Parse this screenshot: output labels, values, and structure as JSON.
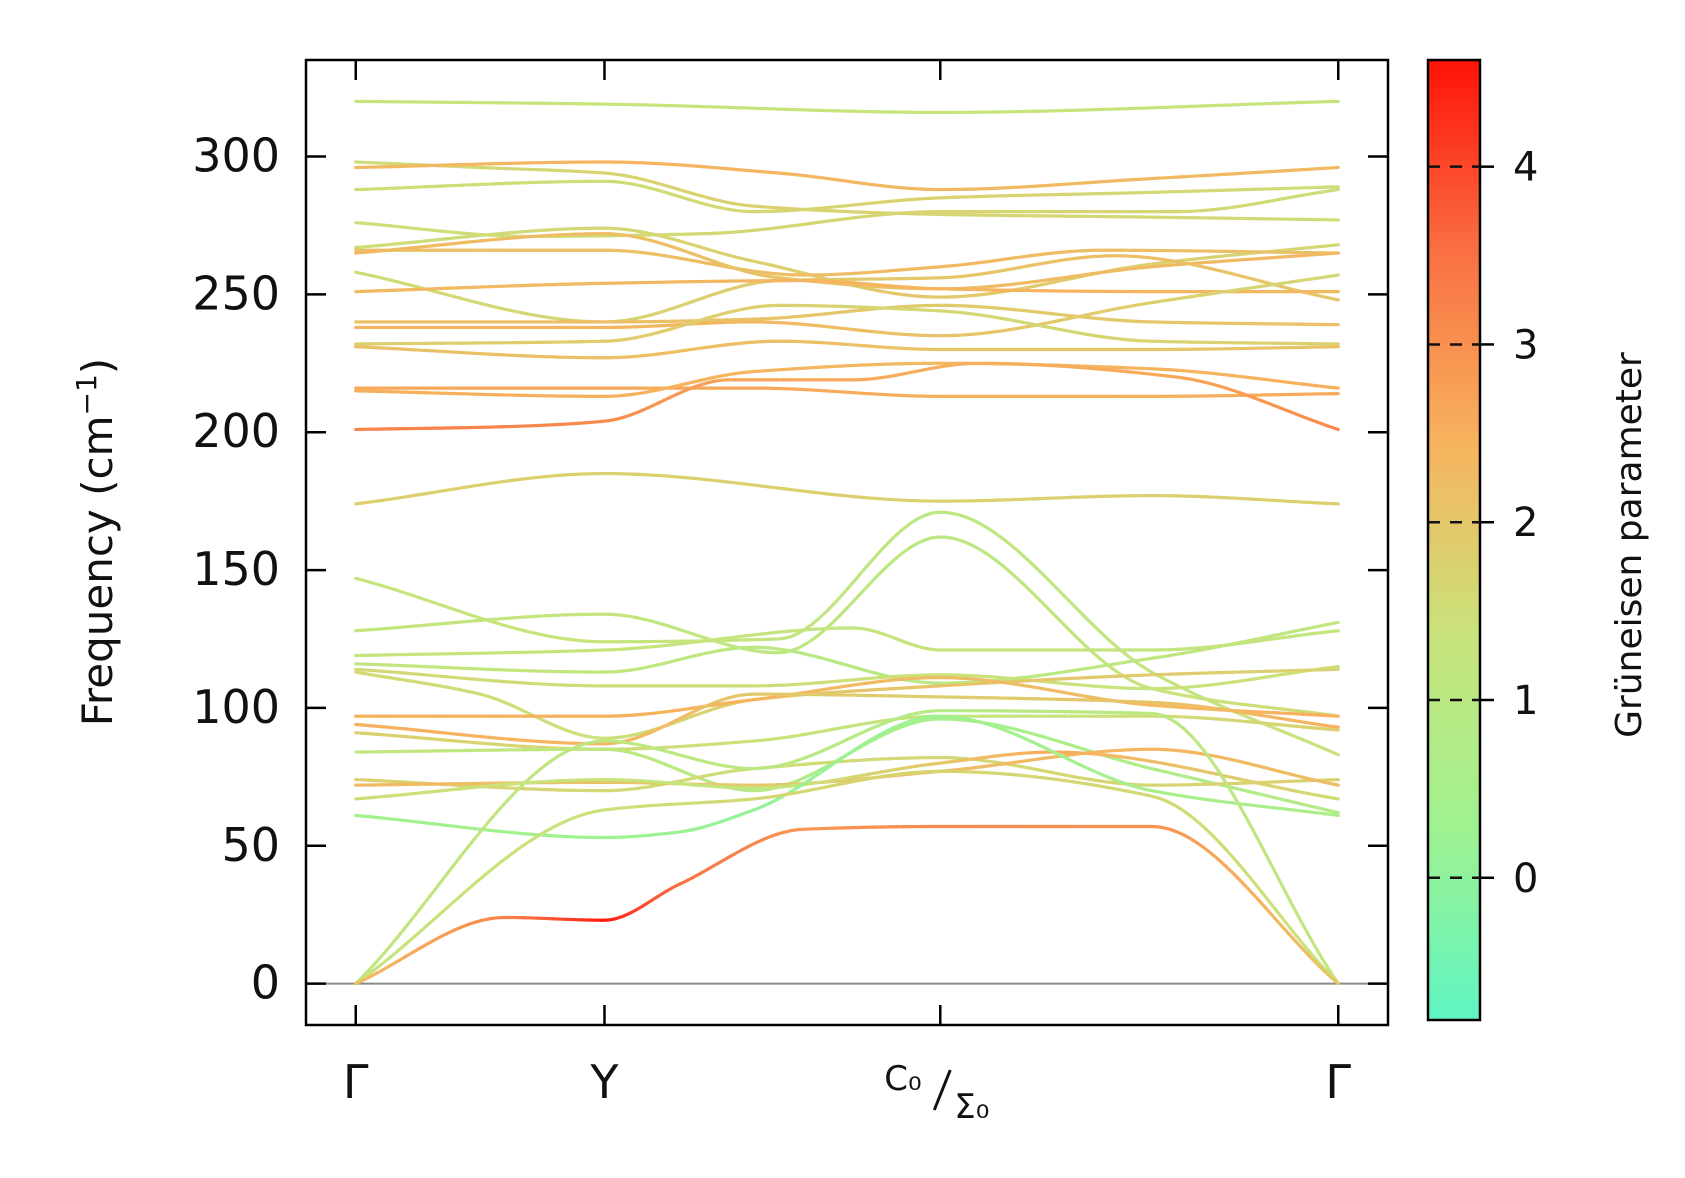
{
  "chart_data": {
    "type": "line",
    "title": "",
    "ylabel": "Frequency (cm",
    "ylabel_sup": "−1",
    "ylabel_close": ")",
    "ylim": [
      -15,
      335
    ],
    "yticks": [
      0,
      50,
      100,
      150,
      200,
      250,
      300
    ],
    "ytick_labels": [
      "0",
      "50",
      "100",
      "150",
      "200",
      "250",
      "300"
    ],
    "kpoints": [
      {
        "pos": 0.0,
        "label": "Γ"
      },
      {
        "pos": 1.0,
        "label": "Y"
      },
      {
        "pos": 2.35,
        "label": "C₀",
        "label2": "Σ₀"
      },
      {
        "pos": 3.95,
        "label": "Γ"
      }
    ],
    "xlim": [
      -0.2,
      4.15
    ],
    "zero_line": 0,
    "colorbar": {
      "label": "Grüneisen parameter",
      "range": [
        -0.8,
        4.6
      ],
      "ticks": [
        0,
        1,
        2,
        3,
        4
      ],
      "tick_labels": [
        "0",
        "1",
        "2",
        "3",
        "4"
      ],
      "colors": [
        "#5ff5c3",
        "#9ff290",
        "#c9e37b",
        "#f7b35e",
        "#f97042",
        "#ff1208"
      ]
    },
    "series": [
      {
        "x": [
          0,
          1,
          2.35,
          3.95
        ],
        "y": [
          320,
          319,
          316,
          320
        ],
        "g": [
          1.3,
          1.3,
          1.3,
          1.3
        ]
      },
      {
        "x": [
          0,
          0.5,
          1,
          1.6,
          2.35,
          3.2,
          3.95
        ],
        "y": [
          298,
          296,
          294,
          282,
          279,
          278,
          277
        ],
        "g": [
          1.5,
          1.6,
          1.7,
          1.8,
          1.7,
          1.6,
          1.5
        ]
      },
      {
        "x": [
          0,
          1,
          1.7,
          2.35,
          3.2,
          3.95
        ],
        "y": [
          296,
          298,
          294,
          288,
          292,
          296
        ],
        "g": [
          2.3,
          2.4,
          2.4,
          2.3,
          2.3,
          2.3
        ]
      },
      {
        "x": [
          0,
          1,
          1.6,
          2.35,
          3.2,
          3.95
        ],
        "y": [
          288,
          291,
          280,
          285,
          287,
          289
        ],
        "g": [
          1.5,
          1.5,
          1.6,
          1.8,
          1.6,
          1.5
        ]
      },
      {
        "x": [
          0,
          0.7,
          1.4,
          2.35,
          3.3,
          3.95
        ],
        "y": [
          276,
          271,
          272,
          280,
          280,
          288
        ],
        "g": [
          1.4,
          1.5,
          1.6,
          1.7,
          1.6,
          1.5
        ]
      },
      {
        "x": [
          0,
          1,
          1.6,
          2.35,
          3.2,
          3.95
        ],
        "y": [
          267,
          274,
          262,
          249,
          261,
          268
        ],
        "g": [
          1.5,
          1.6,
          1.8,
          2.0,
          1.8,
          1.6
        ]
      },
      {
        "x": [
          0,
          1,
          1.8,
          2.35,
          3.0,
          3.95
        ],
        "y": [
          266,
          266,
          257,
          260,
          266,
          265
        ],
        "g": [
          2.1,
          2.2,
          2.2,
          2.3,
          2.2,
          2.1
        ]
      },
      {
        "x": [
          0,
          1,
          1.7,
          2.35,
          3.2,
          3.95
        ],
        "y": [
          265,
          272,
          256,
          252,
          260,
          265
        ],
        "g": [
          2.3,
          2.2,
          2.1,
          2.2,
          2.3,
          2.3
        ]
      },
      {
        "x": [
          0,
          1,
          1.7,
          2.35,
          3.05,
          3.95
        ],
        "y": [
          258,
          240,
          255,
          256,
          264,
          248
        ],
        "g": [
          1.5,
          1.7,
          1.9,
          2.0,
          2.2,
          2.0
        ]
      },
      {
        "x": [
          0,
          1,
          1.8,
          2.35,
          3.2,
          3.95
        ],
        "y": [
          251,
          254,
          255,
          252,
          251,
          251
        ],
        "g": [
          2.3,
          2.3,
          2.4,
          2.4,
          2.4,
          2.3
        ]
      },
      {
        "x": [
          0,
          1,
          1.6,
          2.35,
          3.2,
          3.95
        ],
        "y": [
          240,
          240,
          241,
          246,
          240,
          239
        ],
        "g": [
          2.2,
          2.2,
          2.1,
          1.9,
          2.0,
          2.2
        ]
      },
      {
        "x": [
          0,
          1,
          1.6,
          2.35,
          3.2,
          3.95
        ],
        "y": [
          238,
          238,
          240,
          235,
          247,
          257
        ],
        "g": [
          2.4,
          2.4,
          2.3,
          2.1,
          1.8,
          1.6
        ]
      },
      {
        "x": [
          0,
          1,
          1.7,
          2.35,
          3.2,
          3.95
        ],
        "y": [
          232,
          233,
          246,
          244,
          233,
          232
        ],
        "g": [
          1.8,
          1.9,
          1.8,
          1.6,
          1.7,
          1.8
        ]
      },
      {
        "x": [
          0,
          1,
          1.7,
          2.35,
          3.2,
          3.95
        ],
        "y": [
          231,
          227,
          233,
          230,
          230,
          231
        ],
        "g": [
          2.1,
          2.2,
          2.2,
          2.1,
          2.0,
          2.1
        ]
      },
      {
        "x": [
          0,
          1,
          1.6,
          2.35,
          3.2,
          3.95
        ],
        "y": [
          216,
          216,
          216,
          213,
          213,
          214
        ],
        "g": [
          2.6,
          2.6,
          2.6,
          2.5,
          2.5,
          2.6
        ]
      },
      {
        "x": [
          0,
          1,
          1.6,
          2.35,
          3.2,
          3.95
        ],
        "y": [
          215,
          213,
          222,
          225,
          223,
          216
        ],
        "g": [
          2.5,
          2.5,
          2.4,
          2.3,
          2.4,
          2.5
        ]
      },
      {
        "x": [
          0,
          0.6,
          1,
          1.5,
          2.0,
          2.5,
          3.3,
          3.95
        ],
        "y": [
          201,
          202,
          204,
          219,
          219,
          225,
          220,
          201
        ],
        "g": [
          3.2,
          3.2,
          3.1,
          2.7,
          2.6,
          2.5,
          2.6,
          3.1
        ]
      },
      {
        "x": [
          0,
          1,
          2.35,
          3.2,
          3.95
        ],
        "y": [
          174,
          185,
          175,
          177,
          174
        ],
        "g": [
          1.8,
          1.8,
          1.8,
          1.8,
          1.8
        ]
      },
      {
        "x": [
          0,
          1,
          1.7,
          2.35,
          3.2,
          3.95
        ],
        "y": [
          147,
          124,
          125,
          171,
          113,
          83
        ],
        "g": [
          1.3,
          1.3,
          1.2,
          1.1,
          1.2,
          1.4
        ]
      },
      {
        "x": [
          0,
          1,
          1.7,
          2.35,
          3.2,
          3.95
        ],
        "y": [
          128,
          134,
          120,
          162,
          107,
          97
        ],
        "g": [
          1.2,
          1.2,
          1.1,
          1.0,
          1.3,
          1.6
        ]
      },
      {
        "x": [
          0,
          1,
          2.0,
          2.35,
          3.2,
          3.95
        ],
        "y": [
          119,
          121,
          129,
          121,
          121,
          128
        ],
        "g": [
          1.3,
          1.3,
          1.2,
          1.3,
          1.2,
          1.2
        ]
      },
      {
        "x": [
          0,
          1,
          1.6,
          2.35,
          3.2,
          3.95
        ],
        "y": [
          116,
          113,
          122,
          109,
          118,
          131
        ],
        "g": [
          1.2,
          1.2,
          1.0,
          0.9,
          1.1,
          1.2
        ]
      },
      {
        "x": [
          0,
          1,
          1.6,
          2.35,
          3.2,
          3.95
        ],
        "y": [
          114,
          108,
          108,
          112,
          107,
          115
        ],
        "g": [
          1.6,
          1.5,
          1.5,
          1.4,
          1.3,
          1.5
        ]
      },
      {
        "x": [
          0,
          0.5,
          1,
          1.6,
          2.35,
          3.2,
          3.95
        ],
        "y": [
          113,
          105,
          89,
          103,
          108,
          112,
          114
        ],
        "g": [
          1.6,
          1.5,
          1.4,
          1.9,
          2.1,
          1.9,
          1.7
        ]
      },
      {
        "x": [
          0,
          1,
          1.6,
          2.35,
          3.2,
          3.95
        ],
        "y": [
          97,
          97,
          103,
          111,
          101,
          97
        ],
        "g": [
          2.5,
          2.5,
          2.4,
          2.2,
          2.3,
          2.5
        ]
      },
      {
        "x": [
          0,
          1,
          1.6,
          2.35,
          3.2,
          3.95
        ],
        "y": [
          94,
          87,
          105,
          104,
          102,
          93
        ],
        "g": [
          2.5,
          2.4,
          2.0,
          1.8,
          2.1,
          2.5
        ]
      },
      {
        "x": [
          0,
          1,
          1.6,
          2.35,
          3.2,
          3.95
        ],
        "y": [
          91,
          85,
          88,
          97,
          97,
          92
        ],
        "g": [
          1.8,
          1.6,
          1.4,
          1.2,
          1.5,
          1.8
        ]
      },
      {
        "x": [
          0,
          1,
          1.6,
          2.35,
          3.2,
          3.95
        ],
        "y": [
          84,
          85,
          70,
          96,
          78,
          62
        ],
        "g": [
          1.2,
          1.1,
          0.8,
          0.5,
          0.7,
          0.8
        ]
      },
      {
        "x": [
          0,
          1,
          1.6,
          2.35,
          3.2,
          3.95
        ],
        "y": [
          74,
          70,
          78,
          82,
          72,
          74
        ],
        "g": [
          1.8,
          1.6,
          1.5,
          1.6,
          1.7,
          1.8
        ]
      },
      {
        "x": [
          0,
          1,
          1.6,
          2.35,
          3.2,
          3.95
        ],
        "y": [
          72,
          73,
          72,
          77,
          85,
          72
        ],
        "g": [
          2.3,
          2.1,
          2.0,
          2.2,
          2.4,
          2.2
        ]
      },
      {
        "x": [
          0,
          1,
          1.6,
          2.35,
          2.8,
          3.95
        ],
        "y": [
          67,
          74,
          71,
          80,
          84,
          67
        ],
        "g": [
          1.5,
          1.3,
          1.2,
          2.0,
          2.6,
          1.5
        ]
      },
      {
        "x": [
          0,
          1,
          1.3,
          1.6,
          2.35,
          3.2,
          3.95
        ],
        "y": [
          61,
          53,
          55,
          63,
          97,
          70,
          61
        ],
        "g": [
          0.4,
          0.3,
          0.2,
          0.1,
          0.3,
          0.5,
          0.6
        ]
      },
      {
        "x": [
          0,
          1,
          1.6,
          2.35,
          3.2,
          3.95
        ],
        "y": [
          0,
          88,
          78,
          99,
          98,
          0
        ],
        "g": [
          1.2,
          1.1,
          1.0,
          0.9,
          1.0,
          1.2
        ]
      },
      {
        "x": [
          0,
          1,
          1.6,
          2.35,
          3.2,
          3.95
        ],
        "y": [
          0,
          63,
          67,
          77,
          68,
          0
        ],
        "g": [
          1.3,
          1.4,
          1.6,
          1.7,
          1.6,
          1.3
        ]
      },
      {
        "x": [
          0,
          0.6,
          1,
          1.3,
          1.8,
          2.35,
          3.2,
          3.95
        ],
        "y": [
          0,
          24,
          23,
          36,
          56,
          57,
          57,
          0
        ],
        "g": [
          2.2,
          3.2,
          4.5,
          3.5,
          2.9,
          3.1,
          3.0,
          2.0
        ]
      }
    ]
  }
}
